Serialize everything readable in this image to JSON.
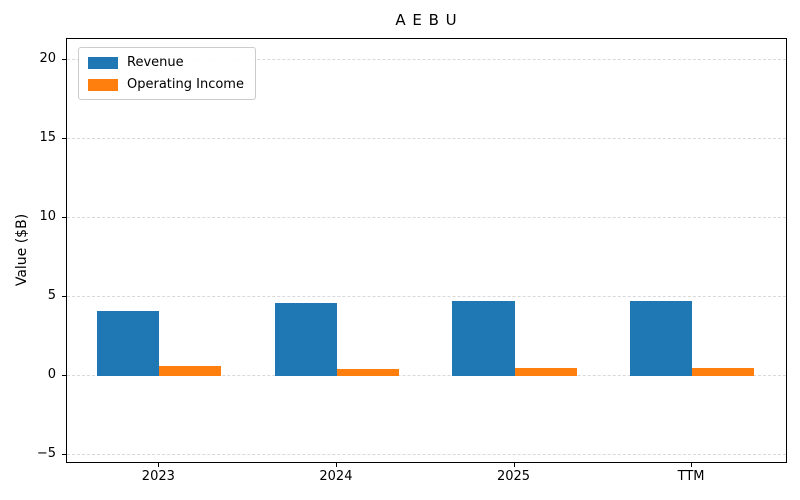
{
  "chart_data": {
    "type": "bar",
    "title": "A E B U",
    "xlabel": "",
    "ylabel": "Value ($B)",
    "categories": [
      "2023",
      "2024",
      "2025",
      "TTM"
    ],
    "series": [
      {
        "name": "Revenue",
        "color": "#1f77b4",
        "values": [
          4.1,
          4.6,
          4.7,
          4.7
        ]
      },
      {
        "name": "Operating Income",
        "color": "#ff7f0e",
        "values": [
          0.6,
          0.4,
          0.5,
          0.5
        ]
      }
    ],
    "yticks": [
      -5,
      0,
      5,
      10,
      15,
      20
    ],
    "ylim": [
      -5.6,
      21.3
    ],
    "xlim": [
      -0.52,
      3.54
    ],
    "bar_width": 0.35,
    "grid": {
      "axis": "y",
      "style": "dashed",
      "color": "#d9d9d9"
    },
    "legend": {
      "position": "upper-left"
    },
    "colors": {
      "spine": "#000000",
      "text": "#000000",
      "background": "#ffffff"
    }
  }
}
